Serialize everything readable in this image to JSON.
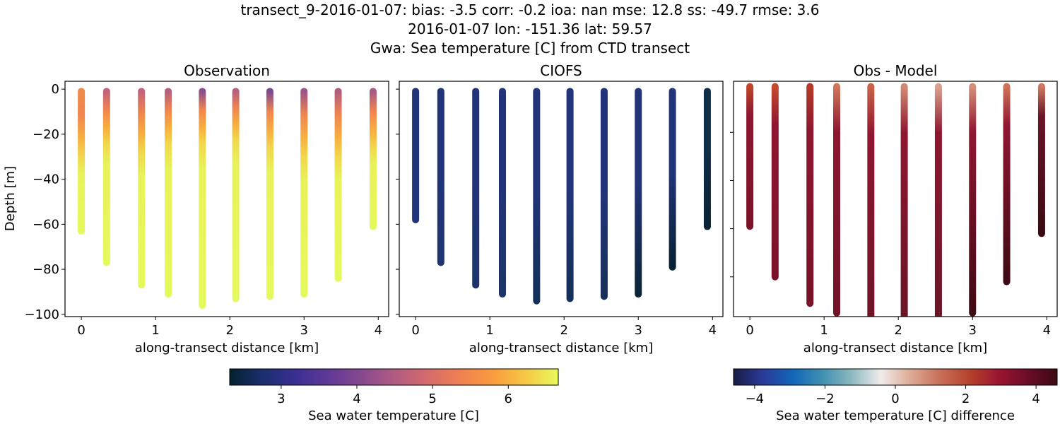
{
  "figure": {
    "title_lines": [
      "transect_9-2016-01-07: bias: -3.5  corr: -0.2  ioa: nan  mse: 12.8  ss: -49.7  rmse: 3.6",
      "2016-01-07 lon: -151.36 lat: 59.57",
      "Gwa: Sea temperature [C] from CTD transect"
    ]
  },
  "chart_data": [
    {
      "type": "scatter",
      "title": "Observation",
      "xlabel": "along-transect distance [km]",
      "ylabel": "Depth [m]",
      "xlim": [
        -0.22,
        4.14
      ],
      "ylim": [
        -101,
        3.5
      ],
      "xticks": [
        0,
        1,
        2,
        3,
        4
      ],
      "yticks": [
        0,
        -20,
        -40,
        -60,
        -80,
        -100
      ],
      "ytick_labels": [
        "0",
        "−20",
        "−40",
        "−60",
        "−80",
        "−100"
      ],
      "show_ytick_labels": true,
      "colormap": "thermal",
      "casts": [
        {
          "x": 0.0,
          "bottom": -63,
          "top_color": "#f08a4b",
          "warm_depth": -30
        },
        {
          "x": 0.34,
          "bottom": -77,
          "top_color": "#c4637a",
          "warm_depth": -24
        },
        {
          "x": 0.81,
          "bottom": -87,
          "top_color": "#c4637a",
          "warm_depth": -28
        },
        {
          "x": 1.17,
          "bottom": -91,
          "top_color": "#b85f7e",
          "warm_depth": -24
        },
        {
          "x": 1.63,
          "bottom": -96,
          "top_color": "#8a4f8e",
          "warm_depth": -24
        },
        {
          "x": 2.08,
          "bottom": -93,
          "top_color": "#b85f7e",
          "warm_depth": -22
        },
        {
          "x": 2.54,
          "bottom": -92,
          "top_color": "#7b4a92",
          "warm_depth": -26
        },
        {
          "x": 3.0,
          "bottom": -91,
          "top_color": "#9a5489",
          "warm_depth": -30
        },
        {
          "x": 3.46,
          "bottom": -84,
          "top_color": "#b25d80",
          "warm_depth": -30
        },
        {
          "x": 3.93,
          "bottom": -61,
          "top_color": "#a75885",
          "warm_depth": -26
        }
      ]
    },
    {
      "type": "scatter",
      "title": "CIOFS",
      "xlabel": "along-transect distance [km]",
      "ylabel": "",
      "xlim": [
        -0.22,
        4.14
      ],
      "ylim": [
        -101,
        3.5
      ],
      "xticks": [
        0,
        1,
        2,
        3,
        4
      ],
      "yticks": [
        0,
        -20,
        -40,
        -60,
        -80,
        -100
      ],
      "show_ytick_labels": false,
      "colormap": "thermal",
      "casts": [
        {
          "x": 0.0,
          "bottom": -58,
          "top_color": "#21347a",
          "bottom_color": "#22357c"
        },
        {
          "x": 0.34,
          "bottom": -77,
          "top_color": "#21347a",
          "bottom_color": "#1f3570"
        },
        {
          "x": 0.81,
          "bottom": -87,
          "top_color": "#21347a",
          "bottom_color": "#1d356c"
        },
        {
          "x": 1.17,
          "bottom": -91,
          "top_color": "#21347a",
          "bottom_color": "#1c3468"
        },
        {
          "x": 1.63,
          "bottom": -94,
          "top_color": "#21347a",
          "bottom_color": "#13305a"
        },
        {
          "x": 2.08,
          "bottom": -93,
          "top_color": "#21347a",
          "bottom_color": "#142f58"
        },
        {
          "x": 2.54,
          "bottom": -92,
          "top_color": "#21347a",
          "bottom_color": "#173059"
        },
        {
          "x": 3.0,
          "bottom": -91,
          "top_color": "#21347a",
          "bottom_color": "#0a2436"
        },
        {
          "x": 3.46,
          "bottom": -79,
          "top_color": "#21347a",
          "bottom_color": "#082233"
        },
        {
          "x": 3.93,
          "bottom": -61,
          "top_color": "#0f2c48",
          "bottom_color": "#0a2333"
        }
      ]
    },
    {
      "type": "scatter",
      "title": "Obs - Model",
      "xlabel": "along-transect distance [km]",
      "ylabel": "",
      "xlim": [
        -0.22,
        4.14
      ],
      "ylim": [
        -96.5,
        1.2
      ],
      "xticks": [
        0,
        1,
        2,
        3,
        4
      ],
      "yticks": [
        -20,
        -40,
        -60,
        -80
      ],
      "show_ytick_labels": false,
      "colormap": "balance",
      "casts": [
        {
          "x": 0.0,
          "bottom": -59,
          "top_color": "#c0452a",
          "mid_color": "#8f1630",
          "bottom_color": "#7c1228"
        },
        {
          "x": 0.34,
          "bottom": -80,
          "top_color": "#c44b30",
          "mid_color": "#8f1630",
          "bottom_color": "#7a1329"
        },
        {
          "x": 0.81,
          "bottom": -91,
          "top_color": "#b53a28",
          "mid_color": "#8f1630",
          "bottom_color": "#771228"
        },
        {
          "x": 1.17,
          "bottom": -95,
          "top_color": "#d0765c",
          "mid_color": "#8f1630",
          "bottom_color": "#721228"
        },
        {
          "x": 1.63,
          "bottom": -99,
          "top_color": "#c96448",
          "mid_color": "#8f1630",
          "bottom_color": "#6e1428"
        },
        {
          "x": 2.08,
          "bottom": -97,
          "top_color": "#d28a72",
          "mid_color": "#8f1630",
          "bottom_color": "#6b1427"
        },
        {
          "x": 2.54,
          "bottom": -96,
          "top_color": "#dba18e",
          "mid_color": "#8f1630",
          "bottom_color": "#6a1529"
        },
        {
          "x": 3.0,
          "bottom": -95,
          "top_color": "#d6907a",
          "mid_color": "#8f1630",
          "bottom_color": "#3f0a14"
        },
        {
          "x": 3.46,
          "bottom": -82,
          "top_color": "#cd735a",
          "mid_color": "#8f1630",
          "bottom_color": "#3c0a14"
        },
        {
          "x": 3.93,
          "bottom": -62,
          "top_color": "#cf785f",
          "mid_color": "#6a1427",
          "bottom_color": "#3a0a12"
        }
      ]
    }
  ],
  "colorbars": [
    {
      "name": "temperature",
      "label": "Sea water temperature [C]",
      "range": [
        2.32,
        6.66
      ],
      "ticks": [
        3,
        4,
        5,
        6
      ],
      "tick_labels": [
        "3",
        "4",
        "5",
        "6"
      ],
      "stops": [
        "#04202f",
        "#1a2f6e",
        "#3b2f93",
        "#5f3996",
        "#87488f",
        "#b05b82",
        "#d46a6c",
        "#ef8052",
        "#f99b3e",
        "#f6c745",
        "#e8fa5b"
      ]
    },
    {
      "name": "difference",
      "label": "Sea water temperature [C] difference",
      "range": [
        -4.6,
        4.6
      ],
      "ticks": [
        -4,
        -2,
        0,
        2,
        4
      ],
      "tick_labels": [
        "−4",
        "−2",
        "0",
        "2",
        "4"
      ],
      "stops": [
        "#181c43",
        "#2a3a99",
        "#1166b8",
        "#3e8fb0",
        "#8bb8c0",
        "#f1eceb",
        "#ddab96",
        "#c8705a",
        "#b5432c",
        "#9b1530",
        "#6a0d27",
        "#3c0912"
      ]
    }
  ]
}
